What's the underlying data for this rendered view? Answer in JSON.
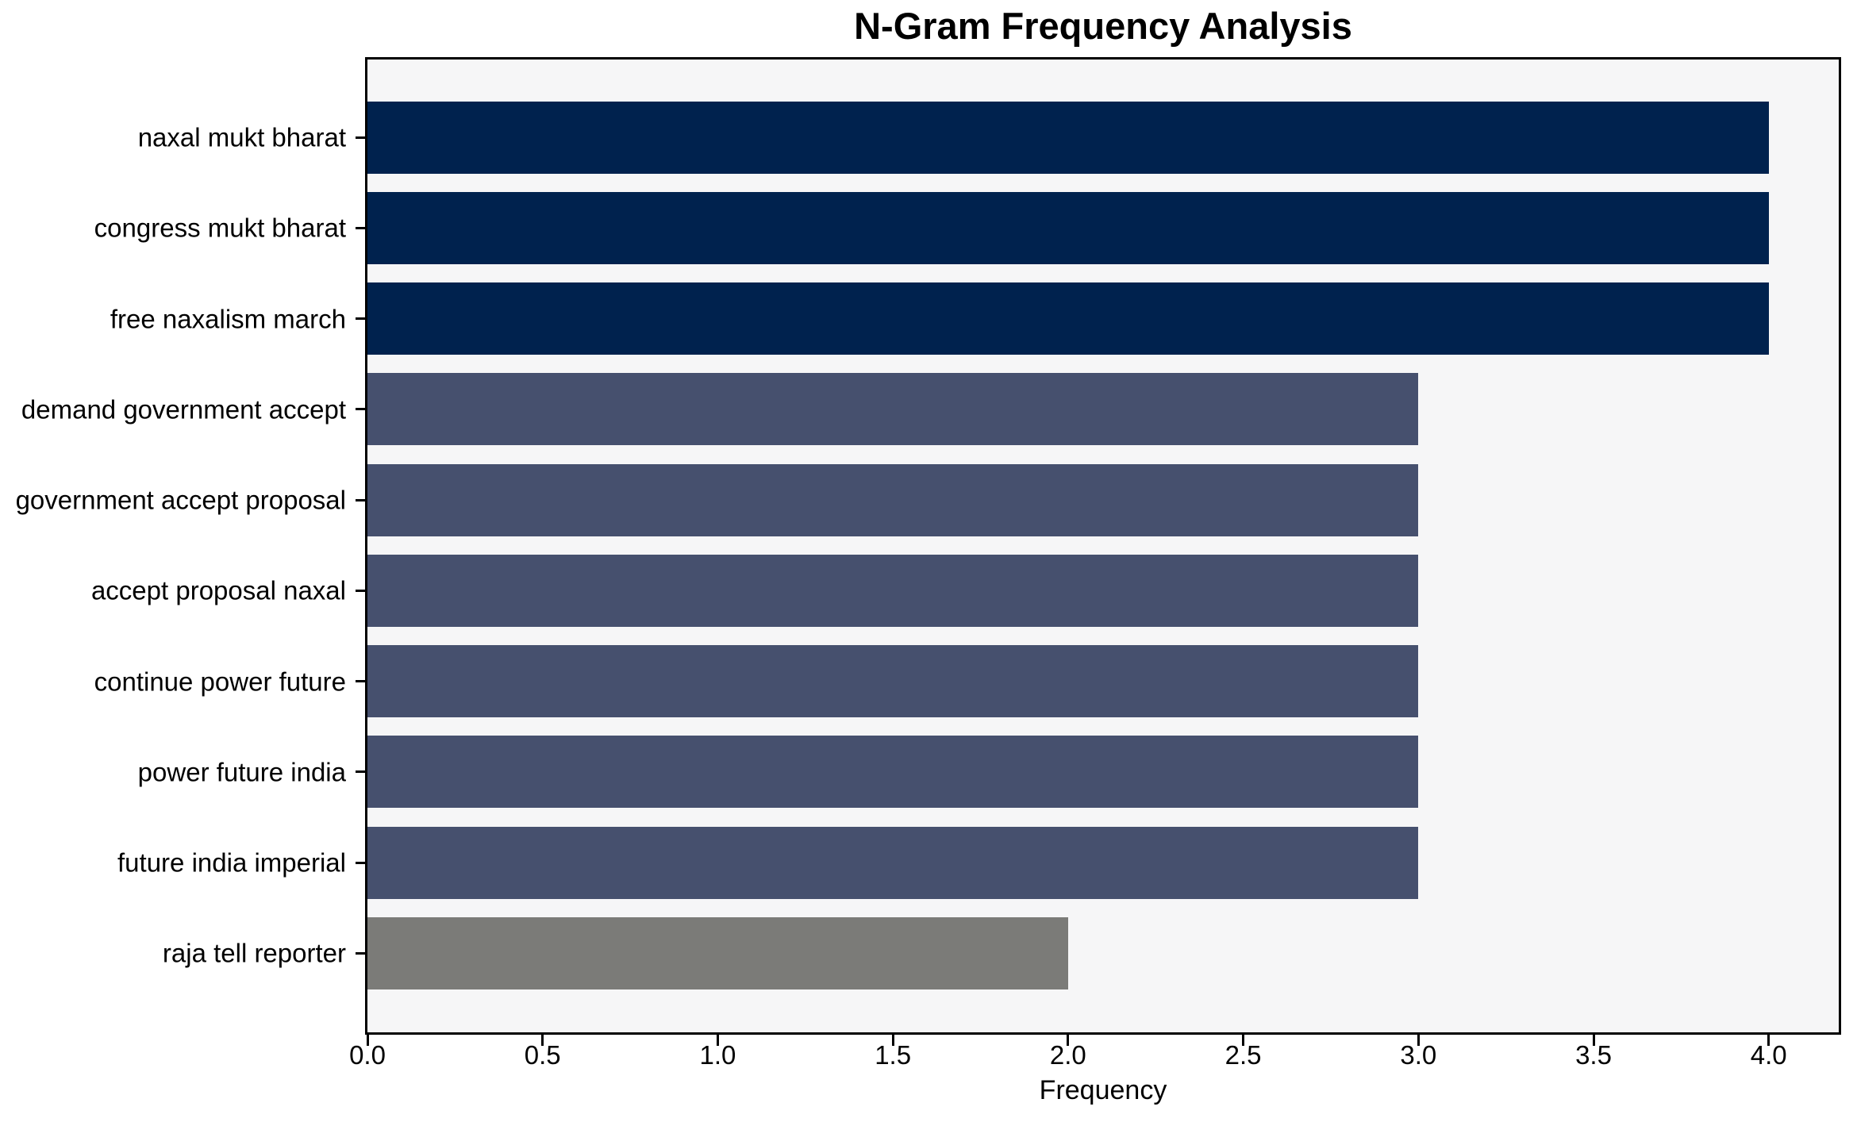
{
  "chart_data": {
    "type": "bar",
    "orientation": "horizontal",
    "title": "N-Gram Frequency Analysis",
    "xlabel": "Frequency",
    "ylabel": "",
    "categories": [
      "naxal mukt bharat",
      "congress mukt bharat",
      "free naxalism march",
      "demand government accept",
      "government accept proposal",
      "accept proposal naxal",
      "continue power future",
      "power future india",
      "future india imperial",
      "raja tell reporter"
    ],
    "values": [
      4,
      4,
      4,
      3,
      3,
      3,
      3,
      3,
      3,
      2
    ],
    "bar_colors": [
      "#00224e",
      "#00224e",
      "#00224e",
      "#46506e",
      "#46506e",
      "#46506e",
      "#46506e",
      "#46506e",
      "#46506e",
      "#7b7b78"
    ],
    "xlim": [
      0,
      4.2
    ],
    "xticks": [
      0,
      0.5,
      1,
      1.5,
      2,
      2.5,
      3,
      3.5,
      4
    ],
    "xtick_labels": [
      "0.0",
      "0.5",
      "1.0",
      "1.5",
      "2.0",
      "2.5",
      "3.0",
      "3.5",
      "4.0"
    ],
    "grid": false,
    "legend": null,
    "plot_background": "#f6f6f7",
    "figure_background": "#ffffff",
    "spine_color": "#000000",
    "text_color": "#000000"
  }
}
